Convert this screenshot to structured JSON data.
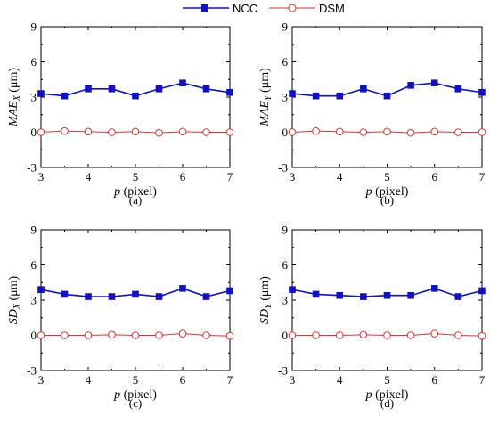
{
  "legend": {
    "ncc": "NCC",
    "dsm": "DSM"
  },
  "colors": {
    "ncc": "#1010c8",
    "dsm": "#e03030"
  },
  "chart_data": [
    {
      "type": "line",
      "panel_label": "(a)",
      "ylabel_main": "MAE",
      "ylabel_sub": "X",
      "ylabel_unit": "(μm)",
      "xlabel_main": "p",
      "xlabel_unit": "(pixel)",
      "x": [
        3,
        3.5,
        4,
        4.5,
        5,
        5.5,
        6,
        6.5,
        7
      ],
      "xlim": [
        3,
        7
      ],
      "ylim": [
        -3,
        9
      ],
      "xticks": [
        "3",
        "4",
        "5",
        "6",
        "7"
      ],
      "yticks": [
        "-3",
        "0",
        "3",
        "6",
        "9"
      ],
      "series": [
        {
          "name": "NCC",
          "values": [
            3.3,
            3.1,
            3.7,
            3.7,
            3.1,
            3.7,
            4.2,
            3.7,
            3.4
          ]
        },
        {
          "name": "DSM",
          "values": [
            0.0,
            0.1,
            0.05,
            0.0,
            0.05,
            -0.05,
            0.05,
            0.0,
            0.0
          ]
        }
      ]
    },
    {
      "type": "line",
      "panel_label": "(b)",
      "ylabel_main": "MAE",
      "ylabel_sub": "Y",
      "ylabel_unit": "(μm)",
      "xlabel_main": "p",
      "xlabel_unit": "(pixel)",
      "x": [
        3,
        3.5,
        4,
        4.5,
        5,
        5.5,
        6,
        6.5,
        7
      ],
      "xlim": [
        3,
        7
      ],
      "ylim": [
        -3,
        9
      ],
      "xticks": [
        "3",
        "4",
        "5",
        "6",
        "7"
      ],
      "yticks": [
        "-3",
        "0",
        "3",
        "6",
        "9"
      ],
      "series": [
        {
          "name": "NCC",
          "values": [
            3.3,
            3.1,
            3.1,
            3.7,
            3.1,
            4.0,
            4.2,
            3.7,
            3.4
          ]
        },
        {
          "name": "DSM",
          "values": [
            0.0,
            0.1,
            0.05,
            0.0,
            0.05,
            -0.05,
            0.05,
            0.0,
            0.0
          ]
        }
      ]
    },
    {
      "type": "line",
      "panel_label": "(c)",
      "ylabel_main": "SD",
      "ylabel_sub": "X",
      "ylabel_unit": "(μm)",
      "xlabel_main": "p",
      "xlabel_unit": "(pixel)",
      "x": [
        3,
        3.5,
        4,
        4.5,
        5,
        5.5,
        6,
        6.5,
        7
      ],
      "xlim": [
        3,
        7
      ],
      "ylim": [
        -3,
        9
      ],
      "xticks": [
        "3",
        "4",
        "5",
        "6",
        "7"
      ],
      "yticks": [
        "-3",
        "0",
        "3",
        "6",
        "9"
      ],
      "series": [
        {
          "name": "NCC",
          "values": [
            3.9,
            3.5,
            3.3,
            3.3,
            3.5,
            3.3,
            4.0,
            3.3,
            3.8
          ]
        },
        {
          "name": "DSM",
          "values": [
            0.0,
            0.0,
            0.0,
            0.05,
            0.0,
            0.0,
            0.15,
            0.0,
            -0.05
          ]
        }
      ]
    },
    {
      "type": "line",
      "panel_label": "(d)",
      "ylabel_main": "SD",
      "ylabel_sub": "Y",
      "ylabel_unit": "(μm)",
      "xlabel_main": "p",
      "xlabel_unit": "(pixel)",
      "x": [
        3,
        3.5,
        4,
        4.5,
        5,
        5.5,
        6,
        6.5,
        7
      ],
      "xlim": [
        3,
        7
      ],
      "ylim": [
        -3,
        9
      ],
      "xticks": [
        "3",
        "4",
        "5",
        "6",
        "7"
      ],
      "yticks": [
        "-3",
        "0",
        "3",
        "6",
        "9"
      ],
      "series": [
        {
          "name": "NCC",
          "values": [
            3.9,
            3.5,
            3.4,
            3.3,
            3.4,
            3.4,
            4.0,
            3.3,
            3.8
          ]
        },
        {
          "name": "DSM",
          "values": [
            0.0,
            0.0,
            0.0,
            0.05,
            0.0,
            0.0,
            0.15,
            0.0,
            -0.05
          ]
        }
      ]
    }
  ]
}
